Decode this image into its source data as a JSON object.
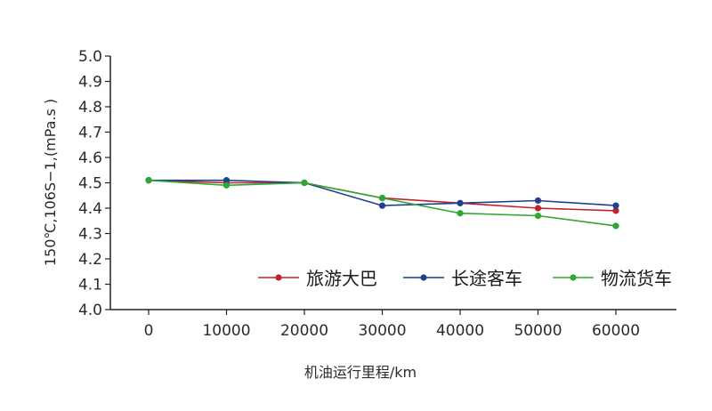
{
  "chart_data": {
    "type": "line",
    "title": "",
    "xlabel": "机油运行里程/km",
    "ylabel": "150℃,106S−1,(mPa.s )",
    "x": [
      0,
      10000,
      20000,
      30000,
      40000,
      50000,
      60000
    ],
    "xticks": [
      "0",
      "10000",
      "20000",
      "30000",
      "40000",
      "50000",
      "60000"
    ],
    "ylim": [
      4.0,
      5.0
    ],
    "yticks": [
      "4.0",
      "4.1",
      "4.2",
      "4.3",
      "4.4",
      "4.5",
      "4.6",
      "4.7",
      "4.8",
      "4.9",
      "5.0"
    ],
    "grid": false,
    "legend_position": "lower-right",
    "series": [
      {
        "name": "旅游大巴",
        "color": "#c0212b",
        "values": [
          4.51,
          4.5,
          4.5,
          4.44,
          4.42,
          4.4,
          4.39
        ]
      },
      {
        "name": "长途客车",
        "color": "#1f3f8f",
        "values": [
          4.51,
          4.51,
          4.5,
          4.41,
          4.42,
          4.43,
          4.41
        ]
      },
      {
        "name": "物流货车",
        "color": "#2ea832",
        "values": [
          4.51,
          4.49,
          4.5,
          4.44,
          4.38,
          4.37,
          4.33
        ]
      }
    ]
  }
}
